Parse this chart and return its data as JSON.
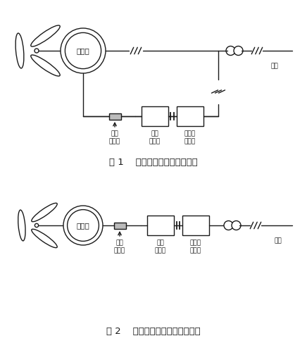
{
  "bg_color": "#ffffff",
  "line_color": "#1a1a1a",
  "fig1_title": "图 1    双馈机组机侧滤波器范围",
  "fig2_title": "图 2    全功率机组机侧滤波器范围",
  "label_jice_filter": "机侧\n滤波器",
  "label_jice_converter": "机侧\n变流器",
  "label_grid_converter": "电网侧\n变流器",
  "label_generator": "发电机",
  "label_grid": "电网",
  "font_size_label": 6.5,
  "font_size_title": 9.5,
  "lw": 1.0
}
